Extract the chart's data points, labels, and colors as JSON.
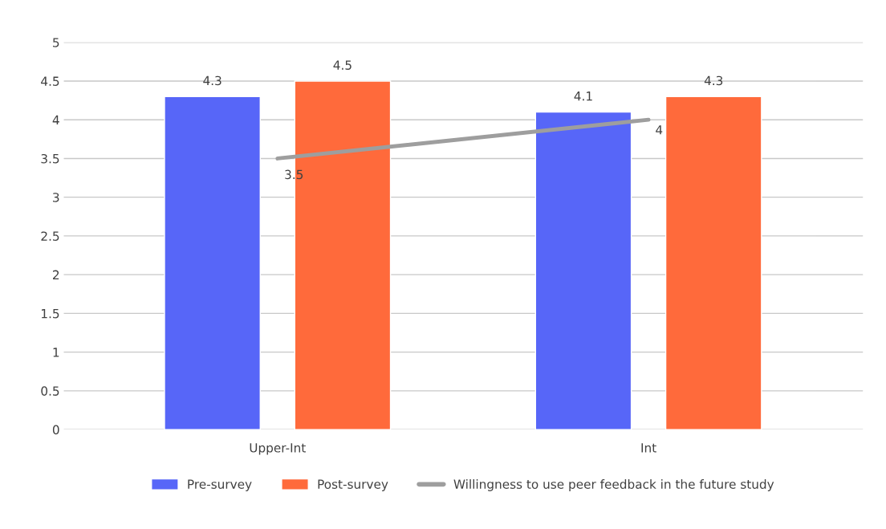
{
  "chart_data": {
    "type": "bar",
    "categories": [
      "Upper-Int",
      "Int"
    ],
    "series": [
      {
        "name": "Pre-survey",
        "color": "#5766f8",
        "values": [
          4.3,
          4.1
        ]
      },
      {
        "name": "Post-survey",
        "color": "#ff6a3b",
        "values": [
          4.5,
          4.3
        ]
      },
      {
        "name": "Willingness to use peer feedback in the future study",
        "type": "line",
        "color": "#9e9e9e",
        "values": [
          3.5,
          4
        ]
      }
    ],
    "ylim": [
      0,
      5
    ],
    "yticks": [
      0,
      0.5,
      1,
      1.5,
      2,
      2.5,
      3,
      3.5,
      4,
      4.5,
      5
    ],
    "grid": "y",
    "legend": "bottom",
    "data_labels": true
  }
}
